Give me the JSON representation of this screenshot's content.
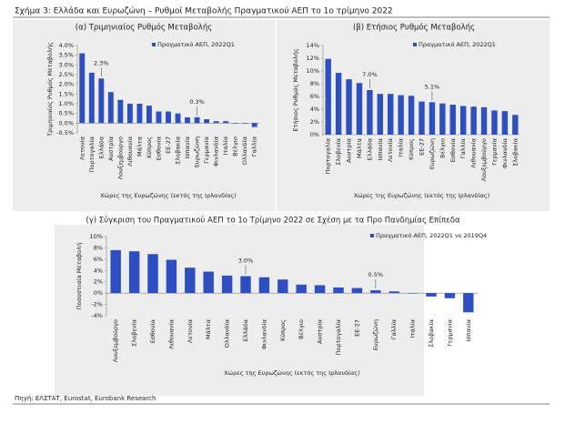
{
  "title": "Σχήμα 3: Ελλάδα και Ευρωζώνη – Ρυθμοί Μεταβολής Πραγματικού ΑΕΠ το 1ο τρίμηνο 2022",
  "source": "Πηγή: ΕΛΣΤΑΤ, Eurostat, Eurobank Research",
  "chart_data": [
    {
      "type": "bar",
      "title": "(α) Τριμηνιαίος Ρυθμός Μεταβολής",
      "y_label": "Τριμηνιαίος Ρυθμός Μεταβολής",
      "x_label": "Χώρες της Ευρωζώνης (εκτός της Ιρλανδίας)",
      "legend": "upper right",
      "categories": [
        "Λετονία",
        "Πορτογαλία",
        "Ελλάδα",
        "Αυστρία",
        "Λουξεμβούργο",
        "Λιθουανία",
        "Μάλτα",
        "Κύπρος",
        "Εσθονία",
        "ΕΕ-27",
        "Σλοβακία",
        "Ισπανία",
        "Ευρωζώνη",
        "Γερμανία",
        "Φινλανδία",
        "Ιταλία",
        "Βέλγιο",
        "Ολλανδία",
        "Γαλλία"
      ],
      "series": [
        {
          "name": "Πραγματικό ΑΕΠ, 2022Q1",
          "color": "#2d4fc4",
          "values": [
            3.6,
            2.6,
            2.3,
            1.6,
            1.2,
            1.0,
            1.0,
            0.9,
            0.6,
            0.6,
            0.5,
            0.3,
            0.3,
            0.2,
            0.1,
            0.1,
            0.0,
            0.0,
            -0.2
          ],
          "value_labels": [
            null,
            null,
            "2.3%",
            null,
            null,
            null,
            null,
            null,
            null,
            null,
            null,
            null,
            "0.3%",
            null,
            null,
            null,
            null,
            null,
            null
          ]
        }
      ],
      "ylim": [
        -0.5,
        4.0
      ],
      "yticks": [
        {
          "value": -0.5,
          "label": "-0.5%"
        },
        {
          "value": 0,
          "label": "0.0%"
        },
        {
          "value": 0.5,
          "label": "0.5%"
        },
        {
          "value": 1.0,
          "label": "1.0%"
        },
        {
          "value": 1.5,
          "label": "1.5%"
        },
        {
          "value": 2.0,
          "label": "2.0%"
        },
        {
          "value": 2.5,
          "label": "2.5%"
        },
        {
          "value": 3.0,
          "label": "3.0%"
        },
        {
          "value": 3.5,
          "label": "3.5%"
        },
        {
          "value": 4.0,
          "label": "4.0%"
        }
      ]
    },
    {
      "type": "bar",
      "title": "(β) Ετήσιος Ρυθμός Μεταβολής",
      "y_label": "Ετήσιος Ρυθμός Μεταβολής",
      "x_label": "Χώρες της Ευρωζώνης (εκτός της Ιρλανδίας)",
      "legend": "upper right",
      "categories": [
        "Πορτογαλία",
        "Σλοβενία",
        "Αυστρία",
        "Μάλτα",
        "Ελλάδα",
        "Ισπανία",
        "Λετονία",
        "Ιταλία",
        "Κύπρος",
        "ΕΕ-27",
        "Ευρωζώνη",
        "Βέλγιο",
        "Εσθονία",
        "Γαλλία",
        "Λιθουανία",
        "Λουξεμβούργο",
        "Γερμανία",
        "Φινλανδία",
        "Σλοβακία"
      ],
      "series": [
        {
          "name": "Πραγματικό ΑΕΠ, 2022Q1",
          "color": "#2d4fc4",
          "values": [
            11.9,
            9.7,
            8.7,
            8.1,
            7.0,
            6.4,
            6.4,
            6.2,
            6.1,
            5.2,
            5.1,
            4.9,
            4.7,
            4.5,
            4.4,
            4.3,
            3.8,
            3.7,
            3.1
          ],
          "value_labels": [
            null,
            null,
            null,
            null,
            "7.0%",
            null,
            null,
            null,
            null,
            null,
            "5.1%",
            null,
            null,
            null,
            null,
            null,
            null,
            null,
            null
          ]
        }
      ],
      "ylim": [
        0,
        14
      ],
      "yticks": [
        {
          "value": 0,
          "label": "0%"
        },
        {
          "value": 2,
          "label": "2%"
        },
        {
          "value": 4,
          "label": "4%"
        },
        {
          "value": 6,
          "label": "6%"
        },
        {
          "value": 8,
          "label": "8%"
        },
        {
          "value": 10,
          "label": "10%"
        },
        {
          "value": 12,
          "label": "12%"
        },
        {
          "value": 14,
          "label": "14%"
        }
      ]
    },
    {
      "type": "bar",
      "title": "(γ) Σύγκριση του Πραγματικού ΑΕΠ το 1ο Τρίμηνο 2022 σε Σχέση με τα Προ Πανδημίας Επίπεδα",
      "y_label": "Ποσοστιαία Μεταβολή",
      "x_label": "Χώρες της Ευρωζώνης (εκτός της Ιρλανδίας)",
      "legend": "upper right",
      "categories": [
        "Λουξεμβούργο",
        "Σλοβενία",
        "Εσθονία",
        "Λιθουανία",
        "Λετονία",
        "Μάλτα",
        "Ολλανδία",
        "Ελλάδα",
        "Φινλανδία",
        "Κύπρος",
        "Βέλγιο",
        "Αυστρία",
        "Πορτογαλία",
        "ΕΕ-27",
        "Ευρωζώνη",
        "Γαλλία",
        "Ιταλία",
        "Σλοβακία",
        "Γερμανία",
        "Ισπανία"
      ],
      "series": [
        {
          "name": "Πραγματικό ΑΕΠ, 2022Q1 vs 2019Q4",
          "color": "#2d4fc4",
          "values": [
            7.6,
            7.4,
            6.9,
            5.9,
            4.5,
            3.8,
            3.1,
            3.0,
            2.8,
            2.4,
            1.5,
            1.4,
            1.0,
            0.9,
            0.5,
            0.3,
            0.0,
            -0.6,
            -0.9,
            -3.4
          ],
          "value_labels": [
            null,
            null,
            null,
            null,
            null,
            null,
            null,
            "3.0%",
            null,
            null,
            null,
            null,
            null,
            null,
            "0.5%",
            null,
            null,
            null,
            null,
            null
          ]
        }
      ],
      "ylim": [
        -4,
        10
      ],
      "yticks": [
        {
          "value": -4,
          "label": "-4%"
        },
        {
          "value": -2,
          "label": "-2%"
        },
        {
          "value": 0,
          "label": "0%"
        },
        {
          "value": 2,
          "label": "2%"
        },
        {
          "value": 4,
          "label": "4%"
        },
        {
          "value": 6,
          "label": "6%"
        },
        {
          "value": 8,
          "label": "8%"
        },
        {
          "value": 10,
          "label": "10%"
        }
      ]
    }
  ]
}
